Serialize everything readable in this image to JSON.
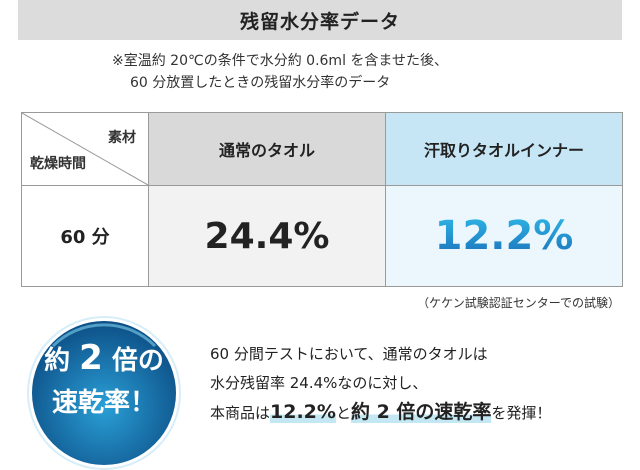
{
  "title": "残留水分率データ",
  "note": {
    "line1": "※室温約 20℃の条件で水分約 0.6ml を含ませた後、",
    "line2": "60 分放置したときの残留水分率のデータ"
  },
  "table": {
    "corner_top": "素材",
    "corner_bottom": "乾燥時間",
    "headers": [
      "通常のタオル",
      "汗取りタオルインナー"
    ],
    "rows": [
      {
        "time": "60 分",
        "values": [
          "24.4%",
          "12.2%"
        ]
      }
    ]
  },
  "source": "（ケケン試験認証センターでの試験）",
  "badge": {
    "prefix": "約",
    "number": "2",
    "suffix": "倍の",
    "line2": "速乾率！"
  },
  "description": {
    "line1": "60 分間テストにおいて、通常のタオルは",
    "line2": "水分残留率 24.4%なのに対し、",
    "line3_pre": "本商品は",
    "line3_hl1": "12.2%",
    "line3_mid": "と",
    "line3_hl2": "約 2 倍の速乾率",
    "line3_post": "を発揮！"
  },
  "colors": {
    "title_bg": "#dcdcdc",
    "normal_header_bg": "#d9d9d9",
    "inner_header_bg": "#c6e6f5",
    "accent_blue": "#1d8fc9",
    "badge_dark": "#0c4f86",
    "badge_light": "#2a9fd6",
    "highlight": "#c4e8f3"
  }
}
